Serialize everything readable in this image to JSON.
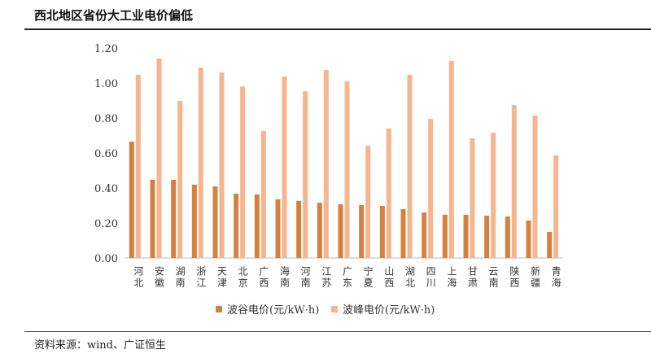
{
  "title": "西北地区省份大工业电价偏低",
  "source": "资料来源：wind、广证恒生",
  "colors": {
    "valley": "#D4803F",
    "peak": "#F4B58F"
  },
  "chart_data": {
    "type": "bar",
    "categories": [
      "河北",
      "安徽",
      "湖南",
      "浙江",
      "天津",
      "北京",
      "广西",
      "海南",
      "河南",
      "江苏",
      "广东",
      "宁夏",
      "山西",
      "湖北",
      "四川",
      "上海",
      "甘肃",
      "云南",
      "陕西",
      "新疆",
      "青海"
    ],
    "series": [
      {
        "name": "波谷电价(元/kW·h)",
        "values": [
          0.665,
          0.447,
          0.447,
          0.419,
          0.409,
          0.367,
          0.363,
          0.335,
          0.326,
          0.316,
          0.307,
          0.302,
          0.298,
          0.279,
          0.26,
          0.247,
          0.247,
          0.242,
          0.237,
          0.214,
          0.149
        ]
      },
      {
        "name": "波峰电价(元/kW·h)",
        "values": [
          1.047,
          1.14,
          0.898,
          1.088,
          1.06,
          0.98,
          0.726,
          1.037,
          0.953,
          1.074,
          1.009,
          0.642,
          0.74,
          1.047,
          0.795,
          1.126,
          0.684,
          0.716,
          0.874,
          0.814,
          0.586
        ]
      }
    ],
    "ylim": [
      0,
      1.2
    ],
    "yticks": [
      "0.00",
      "0.20",
      "0.40",
      "0.60",
      "0.80",
      "1.00",
      "1.20"
    ],
    "grid": false,
    "legend": "bottom"
  }
}
